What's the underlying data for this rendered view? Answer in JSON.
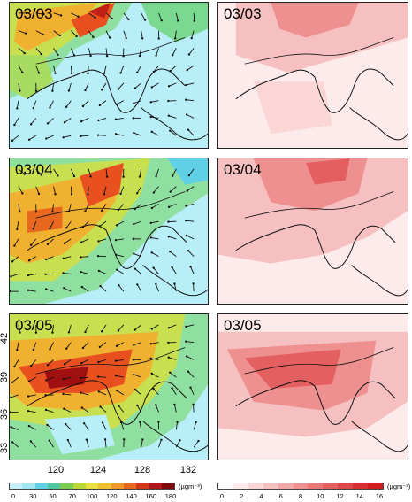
{
  "left_panels": [
    {
      "date": "03/03"
    },
    {
      "date": "03/04"
    },
    {
      "date": "03/05"
    }
  ],
  "right_panels": [
    {
      "date": "03/03"
    },
    {
      "date": "03/04"
    },
    {
      "date": "03/05"
    }
  ],
  "lat_ticks": [
    "42",
    "39",
    "36",
    "33"
  ],
  "lon_ticks": [
    "120",
    "124",
    "128",
    "132"
  ],
  "colorbar_left": {
    "labels": [
      "0",
      "30",
      "50",
      "70",
      "100",
      "120",
      "140",
      "160",
      "180"
    ],
    "unit": "(µgm⁻³)",
    "colors": [
      "#c8f0f8",
      "#9fe6f0",
      "#5fd0e6",
      "#4fc8a0",
      "#7ccc50",
      "#b8d838",
      "#e8e040",
      "#f0c030",
      "#f09828",
      "#e86820",
      "#d03818",
      "#b01818",
      "#800808"
    ]
  },
  "colorbar_right": {
    "labels": [
      "0",
      "2",
      "4",
      "6",
      "8",
      "10",
      "12",
      "14",
      "16"
    ],
    "unit": "(µgm⁻³)",
    "colors": [
      "#ffffff",
      "#fdeaea",
      "#fad6d6",
      "#f6c0c0",
      "#f2a8a8",
      "#ee9090",
      "#ea7878",
      "#e46060",
      "#de4848",
      "#d83030",
      "#d01c1c"
    ]
  }
}
